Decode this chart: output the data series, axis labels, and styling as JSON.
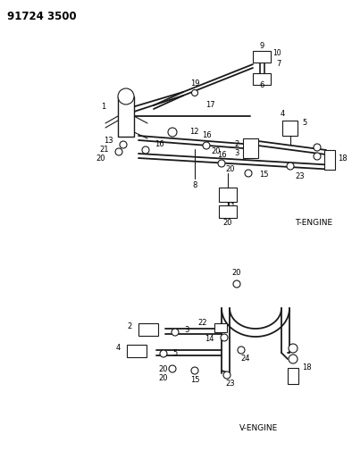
{
  "title": "91724 3500",
  "bg": "#ffffff",
  "lc": "#1a1a1a",
  "tc": "#000000",
  "fw": 3.94,
  "fh": 5.33,
  "dpi": 100,
  "t_engine": "T-ENGINE",
  "v_engine": "V-ENGINE",
  "fs": 6.0,
  "fs_title": 8.5,
  "fs_engine": 6.5
}
